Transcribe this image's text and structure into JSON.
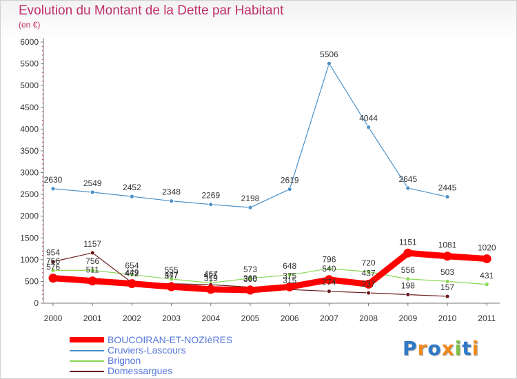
{
  "header": {
    "title": "Evolution du Montant de la Dette par Habitant",
    "subtitle": "(en €)"
  },
  "chart_data": {
    "type": "line",
    "title": "Evolution du Montant de la Dette par Habitant",
    "ylabel": "(en €)",
    "xlabel": "",
    "ylim": [
      0,
      6000
    ],
    "yticks": [
      0,
      500,
      1000,
      1500,
      2000,
      2500,
      3000,
      3500,
      4000,
      4500,
      5000,
      5500,
      6000
    ],
    "categories": [
      "2000",
      "2001",
      "2002",
      "2003",
      "2004",
      "2005",
      "2006",
      "2007",
      "2008",
      "2009",
      "2010",
      "2011"
    ],
    "grid": false,
    "legend_position": "bottom-left",
    "series": [
      {
        "name": "BOUCOIRAN-ET-NOZIèRES",
        "color": "#ff0000",
        "emphasis": true,
        "values": [
          576,
          511,
          449,
          377,
          319,
          300,
          375,
          540,
          437,
          1151,
          1081,
          1020
        ],
        "labels": [
          "576",
          "511",
          "449",
          "377",
          "319",
          "300",
          "375",
          "540",
          "437",
          "1151",
          "1081",
          "1020"
        ]
      },
      {
        "name": "Cruviers-Lascours",
        "color": "#4a90c8",
        "values": [
          2630,
          2549,
          2452,
          2348,
          2269,
          2198,
          2619,
          5506,
          4044,
          2645,
          2445,
          null
        ],
        "labels": [
          "2630",
          "2549",
          "2452",
          "2348",
          "2269",
          "2198",
          "2619",
          "5506",
          "4044",
          "2645",
          "2445",
          ""
        ]
      },
      {
        "name": "Brignon",
        "color": "#88d855",
        "values": [
          756,
          756,
          654,
          555,
          467,
          573,
          648,
          796,
          720,
          556,
          503,
          431
        ],
        "labels": [
          "756",
          "756",
          "654",
          "555",
          "467",
          "573",
          "648",
          "796",
          "720",
          "556",
          "503",
          "431"
        ]
      },
      {
        "name": "Domessargues",
        "color": "#6b1a1a",
        "values": [
          954,
          1157,
          472,
          447,
          425,
          368,
          315,
          274,
          237,
          198,
          157,
          null
        ],
        "labels": [
          "954",
          "1157",
          "472",
          "447",
          "425",
          "368",
          "315",
          "274",
          "237",
          "198",
          "157",
          ""
        ]
      }
    ]
  },
  "legend": {
    "items": [
      {
        "label": "BOUCOIRAN-ET-NOZIèRES",
        "color": "#ff0000"
      },
      {
        "label": "Cruviers-Lascours",
        "color": "#4a90c8"
      },
      {
        "label": "Brignon",
        "color": "#88d855"
      },
      {
        "label": "Domessargues",
        "color": "#6b1a1a"
      }
    ]
  },
  "logo": {
    "text": "Proxiti",
    "colors": [
      "#2f7ac8",
      "#f08a1e",
      "#2f7ac8",
      "#f08a1e",
      "#7bc043",
      "#2f7ac8",
      "#f08a1e"
    ]
  }
}
